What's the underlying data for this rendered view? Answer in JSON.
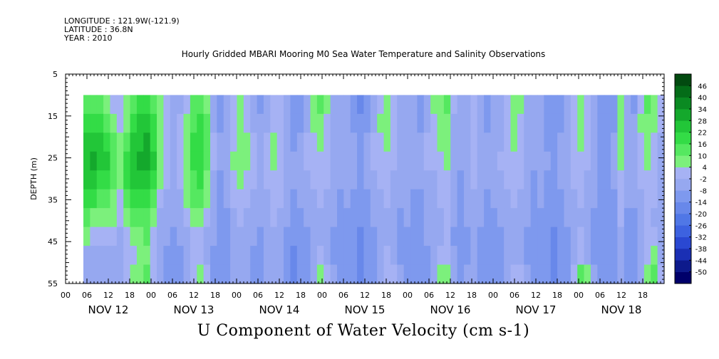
{
  "header": {
    "longitude": "LONGITUDE : 121.9W(-121.9)",
    "latitude": "LATITUDE : 36.8N",
    "year": "YEAR : 2010"
  },
  "chart_data": {
    "type": "heatmap",
    "title": "Hourly Gridded MBARI Mooring M0 Sea Water Temperature and Salinity Observations",
    "caption": "U Component of Water Velocity (cm s-1)",
    "ylabel": "DEPTH (m)",
    "xlabel": "",
    "ylim": [
      5,
      55
    ],
    "y_inverted": true,
    "y_ticks": [
      "5",
      "15",
      "25",
      "35",
      "45",
      "55"
    ],
    "data_depth_range": [
      10,
      55
    ],
    "xlim_hours": [
      0,
      168
    ],
    "hour_labels": [
      "00",
      "06",
      "12",
      "18",
      "00",
      "06",
      "12",
      "18",
      "00",
      "06",
      "12",
      "18",
      "00",
      "06",
      "12",
      "18",
      "00",
      "06",
      "12",
      "18",
      "00",
      "06",
      "12",
      "18",
      "00",
      "06",
      "12",
      "18"
    ],
    "day_labels": [
      "NOV 12",
      "NOV 13",
      "NOV 14",
      "NOV 15",
      "NOV 16",
      "NOV 17",
      "NOV 18"
    ],
    "colorbar": {
      "levels": [
        -50,
        -44,
        -38,
        -32,
        -26,
        -20,
        -14,
        -8,
        -2,
        4,
        10,
        16,
        22,
        28,
        34,
        40,
        46
      ],
      "colors": [
        "#00006a",
        "#0d1a8c",
        "#1a2fb4",
        "#2a48d2",
        "#3d62e0",
        "#5077e6",
        "#6888ea",
        "#7e99ee",
        "#96a8f0",
        "#a6b2f4",
        "#7cf07c",
        "#55e860",
        "#33dc46",
        "#22c638",
        "#14a82c",
        "#0a8a22",
        "#046c18",
        "#024a10"
      ],
      "labels": [
        "46",
        "40",
        "34",
        "28",
        "22",
        "16",
        "10",
        "4",
        "-2",
        "-8",
        "-14",
        "-20",
        "-26",
        "-32",
        "-38",
        "-44",
        "-50"
      ]
    },
    "columns": [
      [
        12,
        18,
        22,
        26,
        24,
        20,
        10,
        4,
        -4,
        -6
      ],
      [
        14,
        20,
        24,
        28,
        22,
        16,
        8,
        0,
        -4,
        -8
      ],
      [
        10,
        16,
        22,
        26,
        20,
        12,
        4,
        -2,
        -6,
        -8
      ],
      [
        6,
        12,
        18,
        22,
        18,
        12,
        6,
        0,
        -4,
        -6
      ],
      [
        0,
        6,
        10,
        14,
        12,
        8,
        4,
        -2,
        -4,
        -4
      ],
      [
        -2,
        0,
        4,
        8,
        6,
        2,
        -2,
        -4,
        -6,
        -6
      ],
      [
        4,
        8,
        14,
        18,
        16,
        10,
        4,
        0,
        -2,
        -2
      ],
      [
        10,
        16,
        22,
        26,
        22,
        16,
        10,
        4,
        0,
        4
      ],
      [
        16,
        22,
        26,
        28,
        24,
        18,
        12,
        8,
        4,
        8
      ],
      [
        20,
        24,
        28,
        30,
        26,
        20,
        14,
        10,
        8,
        10
      ],
      [
        12,
        16,
        20,
        22,
        18,
        12,
        6,
        2,
        0,
        2
      ],
      [
        4,
        6,
        8,
        8,
        4,
        0,
        -4,
        -6,
        -8,
        -8
      ],
      [
        -2,
        -2,
        0,
        2,
        0,
        -4,
        -6,
        -8,
        -10,
        -10
      ],
      [
        -6,
        -6,
        -4,
        -4,
        -6,
        -8,
        -8,
        -10,
        -12,
        -12
      ],
      [
        -4,
        -2,
        0,
        0,
        -2,
        -4,
        -6,
        -8,
        -10,
        -10
      ],
      [
        2,
        4,
        6,
        8,
        6,
        4,
        0,
        -4,
        -6,
        -6
      ],
      [
        10,
        14,
        16,
        18,
        14,
        10,
        4,
        0,
        -2,
        2
      ],
      [
        14,
        18,
        20,
        20,
        16,
        10,
        6,
        2,
        0,
        4
      ],
      [
        8,
        10,
        12,
        12,
        8,
        4,
        0,
        -4,
        -4,
        -2
      ],
      [
        -4,
        -4,
        -2,
        -2,
        -4,
        -6,
        -8,
        -8,
        -10,
        -10
      ],
      [
        -10,
        -10,
        -8,
        -8,
        -10,
        -12,
        -12,
        -14,
        -14,
        -14
      ],
      [
        -8,
        -8,
        -6,
        -4,
        -6,
        -8,
        -10,
        -12,
        -12,
        -12
      ],
      [
        -2,
        0,
        2,
        4,
        2,
        -2,
        -4,
        -6,
        -8,
        -8
      ],
      [
        4,
        6,
        8,
        8,
        4,
        0,
        -2,
        -4,
        -6,
        -6
      ],
      [
        0,
        2,
        4,
        6,
        2,
        -2,
        -4,
        -4,
        -6,
        -6
      ],
      [
        -6,
        -4,
        -2,
        0,
        -2,
        -4,
        -6,
        -8,
        -10,
        -10
      ],
      [
        -10,
        -8,
        -6,
        -4,
        -4,
        -6,
        -8,
        -10,
        -12,
        -12
      ],
      [
        -4,
        -4,
        -2,
        0,
        -2,
        -4,
        -6,
        -6,
        -8,
        -8
      ],
      [
        2,
        2,
        4,
        4,
        2,
        0,
        -2,
        -4,
        -6,
        -6
      ],
      [
        -2,
        0,
        2,
        2,
        0,
        -2,
        -4,
        -6,
        -8,
        -8
      ],
      [
        -8,
        -6,
        -6,
        -4,
        -4,
        -6,
        -8,
        -10,
        -12,
        -12
      ],
      [
        -14,
        -12,
        -10,
        -8,
        -8,
        -10,
        -12,
        -14,
        -16,
        -16
      ],
      [
        -12,
        -10,
        -8,
        -6,
        -6,
        -8,
        -10,
        -12,
        -14,
        -14
      ],
      [
        -4,
        -4,
        -2,
        -2,
        -4,
        -6,
        -8,
        -10,
        -10,
        -10
      ],
      [
        4,
        4,
        2,
        0,
        -2,
        -4,
        -6,
        -8,
        -8,
        -8
      ],
      [
        10,
        8,
        4,
        2,
        0,
        -2,
        -4,
        -4,
        0,
        6
      ],
      [
        4,
        2,
        0,
        -2,
        -2,
        -4,
        -6,
        -6,
        -4,
        2
      ],
      [
        -4,
        -4,
        -6,
        -6,
        -6,
        -8,
        -8,
        -10,
        -10,
        -8
      ],
      [
        -8,
        -8,
        -8,
        -8,
        -8,
        -10,
        -10,
        -12,
        -12,
        -12
      ],
      [
        -6,
        -6,
        -6,
        -6,
        -6,
        -8,
        -10,
        -10,
        -12,
        -12
      ],
      [
        -10,
        -10,
        -8,
        -8,
        -8,
        -10,
        -12,
        -12,
        -14,
        -14
      ],
      [
        -16,
        -14,
        -12,
        -10,
        -10,
        -12,
        -14,
        -16,
        -18,
        -18
      ],
      [
        -12,
        -10,
        -8,
        -8,
        -8,
        -10,
        -12,
        -14,
        -14,
        -14
      ],
      [
        -4,
        -4,
        -2,
        -2,
        -4,
        -6,
        -8,
        -10,
        -10,
        -10
      ],
      [
        2,
        4,
        2,
        0,
        -2,
        -4,
        -6,
        -6,
        -8,
        -6
      ],
      [
        4,
        6,
        4,
        2,
        0,
        -2,
        -4,
        -4,
        -2,
        2
      ],
      [
        -2,
        0,
        0,
        -2,
        -4,
        -6,
        -6,
        -8,
        -6,
        -2
      ],
      [
        -6,
        -6,
        -6,
        -6,
        -8,
        -8,
        -10,
        -10,
        -10,
        -8
      ],
      [
        -4,
        -4,
        -4,
        -4,
        -6,
        -8,
        -8,
        -10,
        -10,
        -10
      ],
      [
        -8,
        -8,
        -8,
        -8,
        -8,
        -10,
        -10,
        -12,
        -12,
        -12
      ],
      [
        -10,
        -10,
        -8,
        -8,
        -8,
        -10,
        -10,
        -12,
        -12,
        -12
      ],
      [
        -4,
        -4,
        -2,
        -2,
        -4,
        -6,
        -8,
        -8,
        -10,
        -10
      ],
      [
        4,
        2,
        0,
        -2,
        -4,
        -6,
        -6,
        -8,
        -8,
        -6
      ],
      [
        8,
        6,
        4,
        2,
        0,
        -2,
        -4,
        -4,
        -2,
        4
      ],
      [
        10,
        8,
        6,
        4,
        2,
        0,
        -2,
        -2,
        2,
        8
      ],
      [
        -2,
        -4,
        -4,
        -6,
        -6,
        -8,
        -8,
        -10,
        -8,
        -6
      ],
      [
        -8,
        -8,
        -8,
        -8,
        -10,
        -10,
        -12,
        -12,
        -12,
        -10
      ],
      [
        -6,
        -6,
        -4,
        -4,
        -6,
        -8,
        -8,
        -10,
        -10,
        -8
      ],
      [
        -2,
        -2,
        0,
        0,
        -2,
        -4,
        -6,
        -6,
        -8,
        -6
      ],
      [
        -6,
        -6,
        -4,
        -4,
        -6,
        -8,
        -8,
        -10,
        -10,
        -10
      ],
      [
        -10,
        -10,
        -8,
        -8,
        -8,
        -10,
        -12,
        -12,
        -14,
        -14
      ],
      [
        -8,
        -8,
        -6,
        -6,
        -6,
        -8,
        -10,
        -12,
        -12,
        -12
      ],
      [
        -4,
        -4,
        -4,
        -2,
        -4,
        -6,
        -8,
        -10,
        -10,
        -10
      ],
      [
        2,
        2,
        0,
        0,
        -2,
        -4,
        -6,
        -6,
        -8,
        -6
      ],
      [
        8,
        6,
        4,
        2,
        0,
        -2,
        -4,
        -4,
        -4,
        2
      ],
      [
        4,
        2,
        0,
        -2,
        -2,
        -4,
        -6,
        -6,
        -4,
        0
      ],
      [
        -4,
        -4,
        -6,
        -6,
        -6,
        -8,
        -8,
        -10,
        -10,
        -8
      ],
      [
        -8,
        -8,
        -8,
        -8,
        -10,
        -10,
        -12,
        -12,
        -12,
        -12
      ],
      [
        -6,
        -6,
        -6,
        -6,
        -8,
        -8,
        -10,
        -10,
        -12,
        -12
      ],
      [
        -10,
        -10,
        -10,
        -8,
        -10,
        -10,
        -12,
        -12,
        -14,
        -14
      ],
      [
        -14,
        -12,
        -12,
        -10,
        -10,
        -12,
        -14,
        -16,
        -16,
        -16
      ],
      [
        -10,
        -10,
        -8,
        -8,
        -8,
        -10,
        -12,
        -14,
        -14,
        -14
      ],
      [
        -6,
        -6,
        -4,
        -4,
        -4,
        -6,
        -8,
        -10,
        -10,
        -10
      ],
      [
        2,
        2,
        0,
        -2,
        -2,
        -4,
        -6,
        -6,
        -4,
        2
      ],
      [
        6,
        6,
        4,
        2,
        0,
        -2,
        -4,
        -2,
        2,
        10
      ],
      [
        2,
        2,
        0,
        -2,
        -4,
        -6,
        -6,
        -6,
        -4,
        4
      ],
      [
        -4,
        -4,
        -6,
        -6,
        -8,
        -8,
        -10,
        -10,
        -10,
        -8
      ],
      [
        -10,
        -10,
        -10,
        -10,
        -10,
        -12,
        -12,
        -14,
        -14,
        -14
      ],
      [
        -12,
        -12,
        -10,
        -10,
        -10,
        -12,
        -12,
        -14,
        -14,
        -14
      ],
      [
        -10,
        -10,
        -8,
        -8,
        -8,
        -10,
        -12,
        -12,
        -14,
        -14
      ],
      [
        8,
        6,
        4,
        4,
        2,
        0,
        -2,
        -4,
        -6,
        -6
      ],
      [
        -4,
        -4,
        -6,
        -6,
        -8,
        -8,
        -10,
        -12,
        -12,
        -12
      ],
      [
        -10,
        -8,
        -8,
        -6,
        -6,
        -8,
        -10,
        -12,
        -12,
        -12
      ],
      [
        2,
        4,
        2,
        0,
        -2,
        -4,
        -6,
        -8,
        -8,
        -8
      ],
      [
        10,
        8,
        6,
        4,
        2,
        0,
        -2,
        -2,
        2,
        8
      ],
      [
        6,
        4,
        2,
        0,
        -2,
        -2,
        -4,
        -2,
        4,
        10
      ],
      [
        -2,
        -2,
        -4,
        -4,
        -4,
        -6,
        -6,
        -6,
        -4,
        2
      ]
    ]
  }
}
